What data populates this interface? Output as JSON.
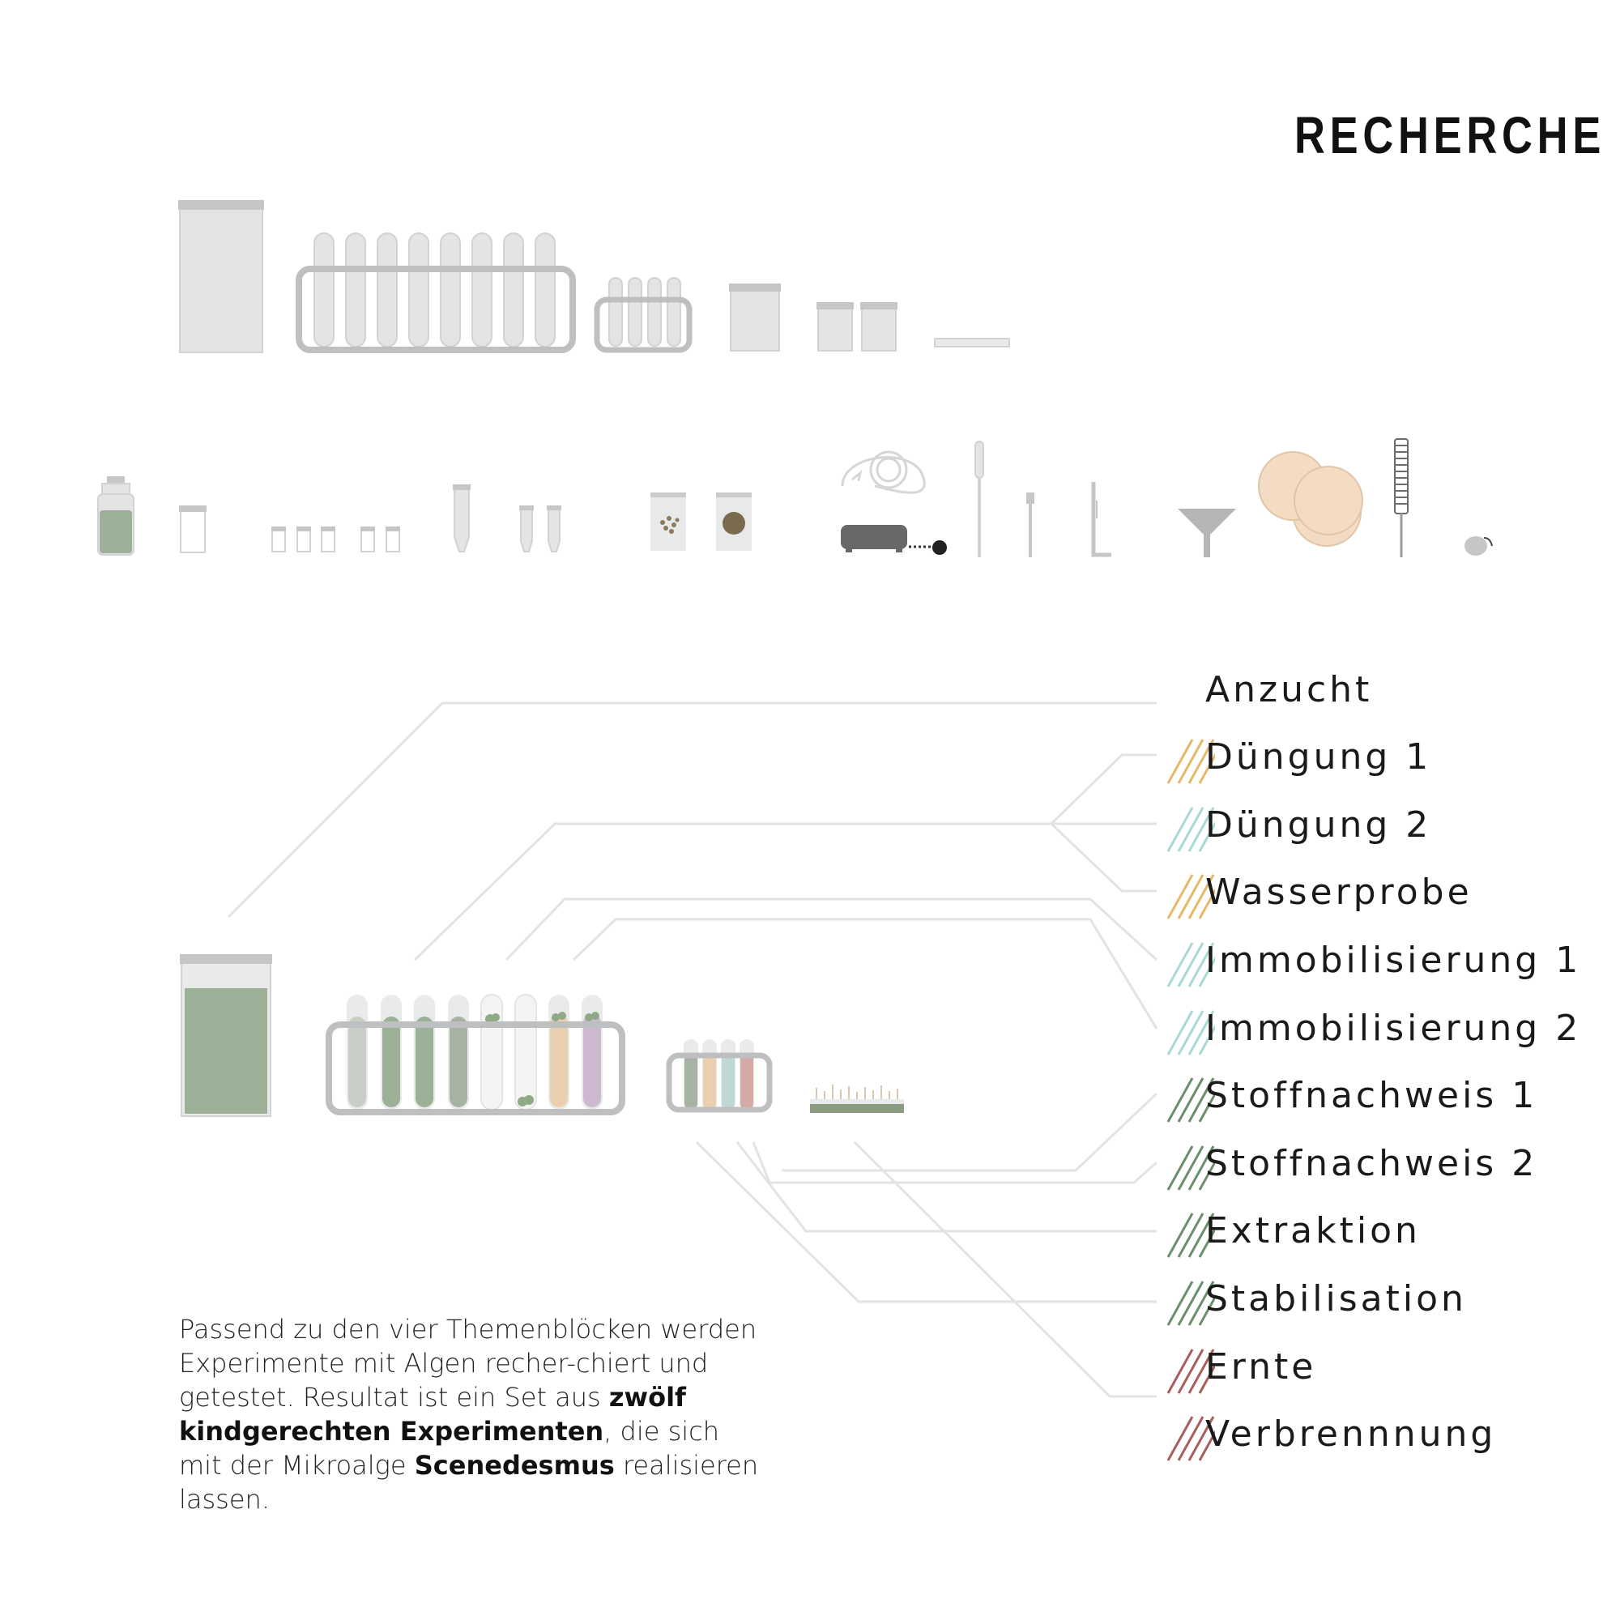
{
  "title": "RECHERCHE",
  "experiments": [
    {
      "label": "Anzucht",
      "hatch": ""
    },
    {
      "label": "Düngung 1",
      "hatch": "#e8b86a"
    },
    {
      "label": "Düngung 2",
      "hatch": "#a9d9d4"
    },
    {
      "label": "Wasserprobe",
      "hatch": "#e8b86a"
    },
    {
      "label": "Immobilisierung 1",
      "hatch": "#a9d9d4"
    },
    {
      "label": "Immobilisierung 2",
      "hatch": "#a9d9d4"
    },
    {
      "label": "Stoffnachweis 1",
      "hatch": "#6b8f6b"
    },
    {
      "label": "Stoffnachweis 2",
      "hatch": "#6b8f6b"
    },
    {
      "label": "Extraktion",
      "hatch": "#6b8f6b"
    },
    {
      "label": "Stabilisation",
      "hatch": "#6b8f6b"
    },
    {
      "label": "Ernte",
      "hatch": "#a85e5a"
    },
    {
      "label": "Verbrennnung",
      "hatch": "#a85e5a"
    }
  ],
  "description": {
    "part1": "Passend zu den vier Themenblöcken werden Experimente mit Algen recher-chiert und getestet. Resultat ist ein Set aus ",
    "bold1": "zwölf kindgerechten Experimenten",
    "part2": ", die sich mit der Mikroalge ",
    "bold2": "Scenedesmus",
    "part3": " realisieren lassen."
  },
  "colors": {
    "glass": "#e3e5e4",
    "glass_stroke": "#c9cbcc",
    "rack": "#bdbfc1",
    "algae_green": "#9caf97",
    "connector": "#e3e3e3"
  }
}
